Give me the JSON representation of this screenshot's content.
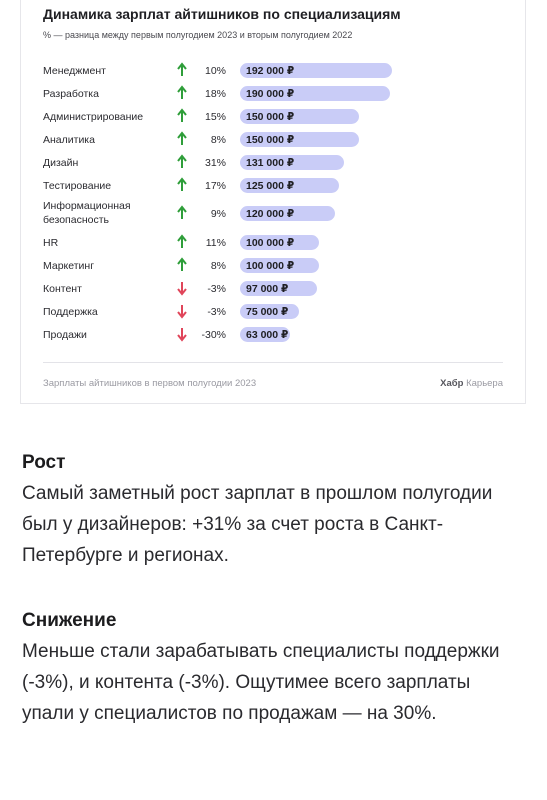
{
  "chart_data": {
    "type": "bar",
    "orientation": "horizontal",
    "title": "Динамика зарплат айтишников по специализациям",
    "subtitle": "% — разница между первым полугодием 2023 и вторым полугодием 2022",
    "categories": [
      "Менеджмент",
      "Разработка",
      "Администрирование",
      "Аналитика",
      "Дизайн",
      "Тестирование",
      "Информационная безопасность",
      "HR",
      "Маркетинг",
      "Контент",
      "Поддержка",
      "Продажи"
    ],
    "values": [
      192000,
      190000,
      150000,
      150000,
      131000,
      125000,
      120000,
      100000,
      100000,
      97000,
      75000,
      63000
    ],
    "value_labels": [
      "192 000 ₽",
      "190 000 ₽",
      "150 000 ₽",
      "150 000 ₽",
      "131 000 ₽",
      "125 000 ₽",
      "120 000 ₽",
      "100 000 ₽",
      "100 000 ₽",
      "97 000 ₽",
      "75 000 ₽",
      "63 000 ₽"
    ],
    "changes": [
      "10%",
      "18%",
      "15%",
      "8%",
      "31%",
      "17%",
      "9%",
      "11%",
      "8%",
      "-3%",
      "-3%",
      "-30%"
    ],
    "directions": [
      "up",
      "up",
      "up",
      "up",
      "up",
      "up",
      "up",
      "up",
      "up",
      "down",
      "down",
      "down"
    ],
    "colors": {
      "bar": "#c9ccf7",
      "up": "#2f9e3a",
      "down": "#e0455a"
    },
    "grid": false
  },
  "footer": {
    "source": "Зарплаты айтишников в первом полугодии 2023",
    "brand_bold": "Хабр",
    "brand_rest": "Карьера"
  },
  "sections": [
    {
      "heading": "Рост",
      "text": "Самый заметный рост зарплат в прошлом полугодии был у дизайнеров: +31% за счет роста в Санкт-Петербурге и регионах."
    },
    {
      "heading": "Снижение",
      "text": "Меньше стали зарабатывать специалисты поддержки (-3%), и контента (-3%). Ощутимее всего зарплаты упали у специалистов по продажам — на 30%."
    }
  ]
}
